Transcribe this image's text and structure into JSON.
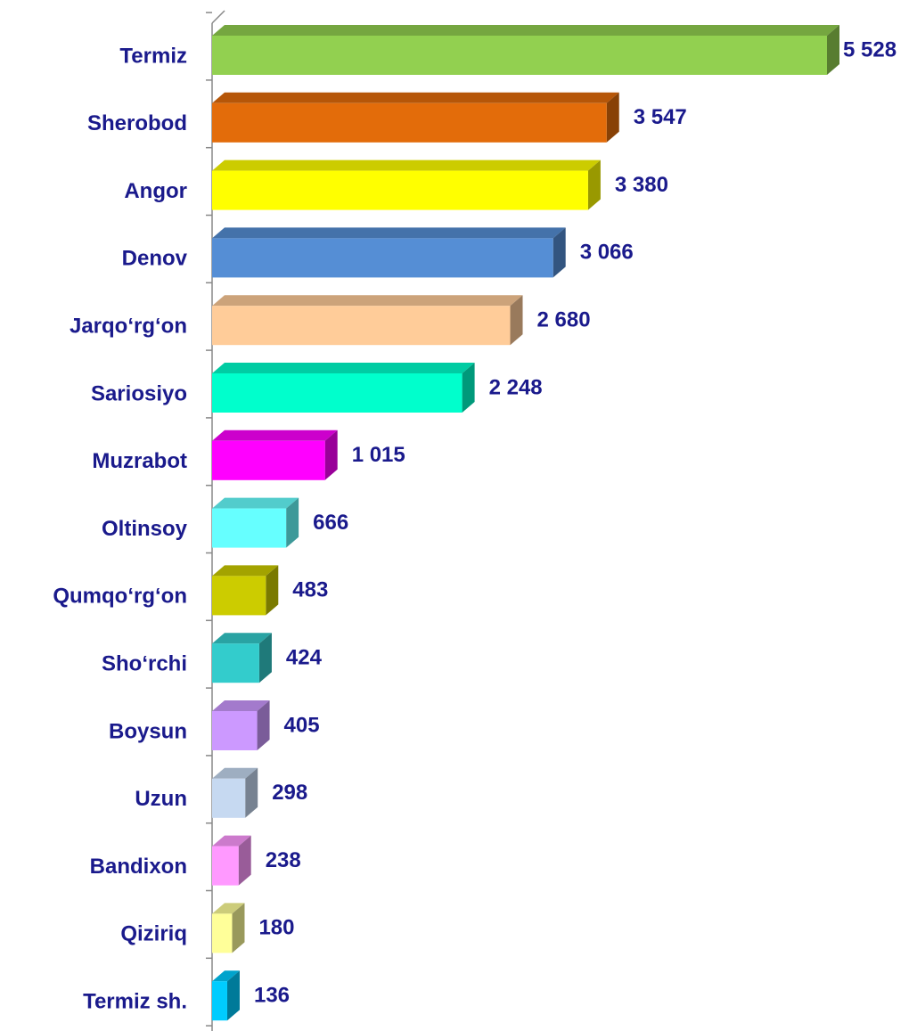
{
  "chart_data": {
    "type": "bar",
    "orientation": "horizontal",
    "categories": [
      "Termiz",
      "Sherobod",
      "Angor",
      "Denov",
      "Jarqo‘rg‘on",
      "Sariosiyo",
      "Muzrabot",
      "Oltinsoy",
      "Qumqo‘rg‘on",
      "Sho‘rchi",
      "Boysun",
      "Uzun",
      "Bandixon",
      "Qiziriq",
      "Termiz sh."
    ],
    "values": [
      5528,
      3547,
      3380,
      3066,
      2680,
      2248,
      1015,
      666,
      483,
      424,
      405,
      298,
      238,
      180,
      136
    ],
    "value_labels": [
      "5 528",
      "3 547",
      "3 380",
      "3 066",
      "2 680",
      "2 248",
      "1 015",
      "666",
      "483",
      "424",
      "405",
      "298",
      "238",
      "180",
      "136"
    ],
    "colors": [
      "#92d050",
      "#e36c0a",
      "#ffff00",
      "#558ed5",
      "#ffcc99",
      "#00ffcc",
      "#ff00ff",
      "#66ffff",
      "#cccc00",
      "#33cccc",
      "#cc99ff",
      "#c6d9f1",
      "#ff99ff",
      "#ffff99",
      "#00ccff"
    ]
  }
}
